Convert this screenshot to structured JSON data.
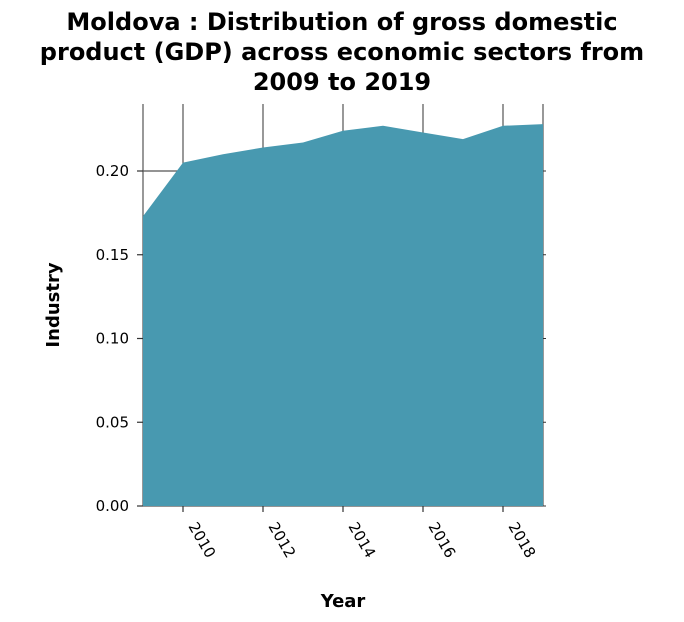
{
  "chart_data": {
    "type": "area",
    "title_lines": [
      "Moldova : Distribution of gross domestic",
      "product (GDP) across economic sectors from",
      "2009 to 2019"
    ],
    "xlabel": "Year",
    "ylabel": "Industry",
    "x": [
      2009,
      2010,
      2011,
      2012,
      2013,
      2014,
      2015,
      2016,
      2017,
      2018,
      2019
    ],
    "series": [
      {
        "values": [
          0.173,
          0.205,
          0.21,
          0.214,
          0.217,
          0.224,
          0.227,
          0.223,
          0.219,
          0.227,
          0.228
        ]
      }
    ],
    "xlim": [
      2009,
      2019
    ],
    "ylim": [
      0,
      0.24
    ],
    "x_ticks": [
      2010,
      2012,
      2014,
      2016,
      2018
    ],
    "x_tick_labels": [
      "2010",
      "2012",
      "2014",
      "2016",
      "2018"
    ],
    "y_ticks": [
      0.0,
      0.05,
      0.1,
      0.15,
      0.2
    ],
    "y_tick_labels": [
      "0.00",
      "0.05",
      "0.10",
      "0.15",
      "0.20"
    ],
    "grid": true,
    "colors": {
      "area": "#4899b0",
      "grid": "#555555",
      "background": "#ffffff"
    }
  }
}
